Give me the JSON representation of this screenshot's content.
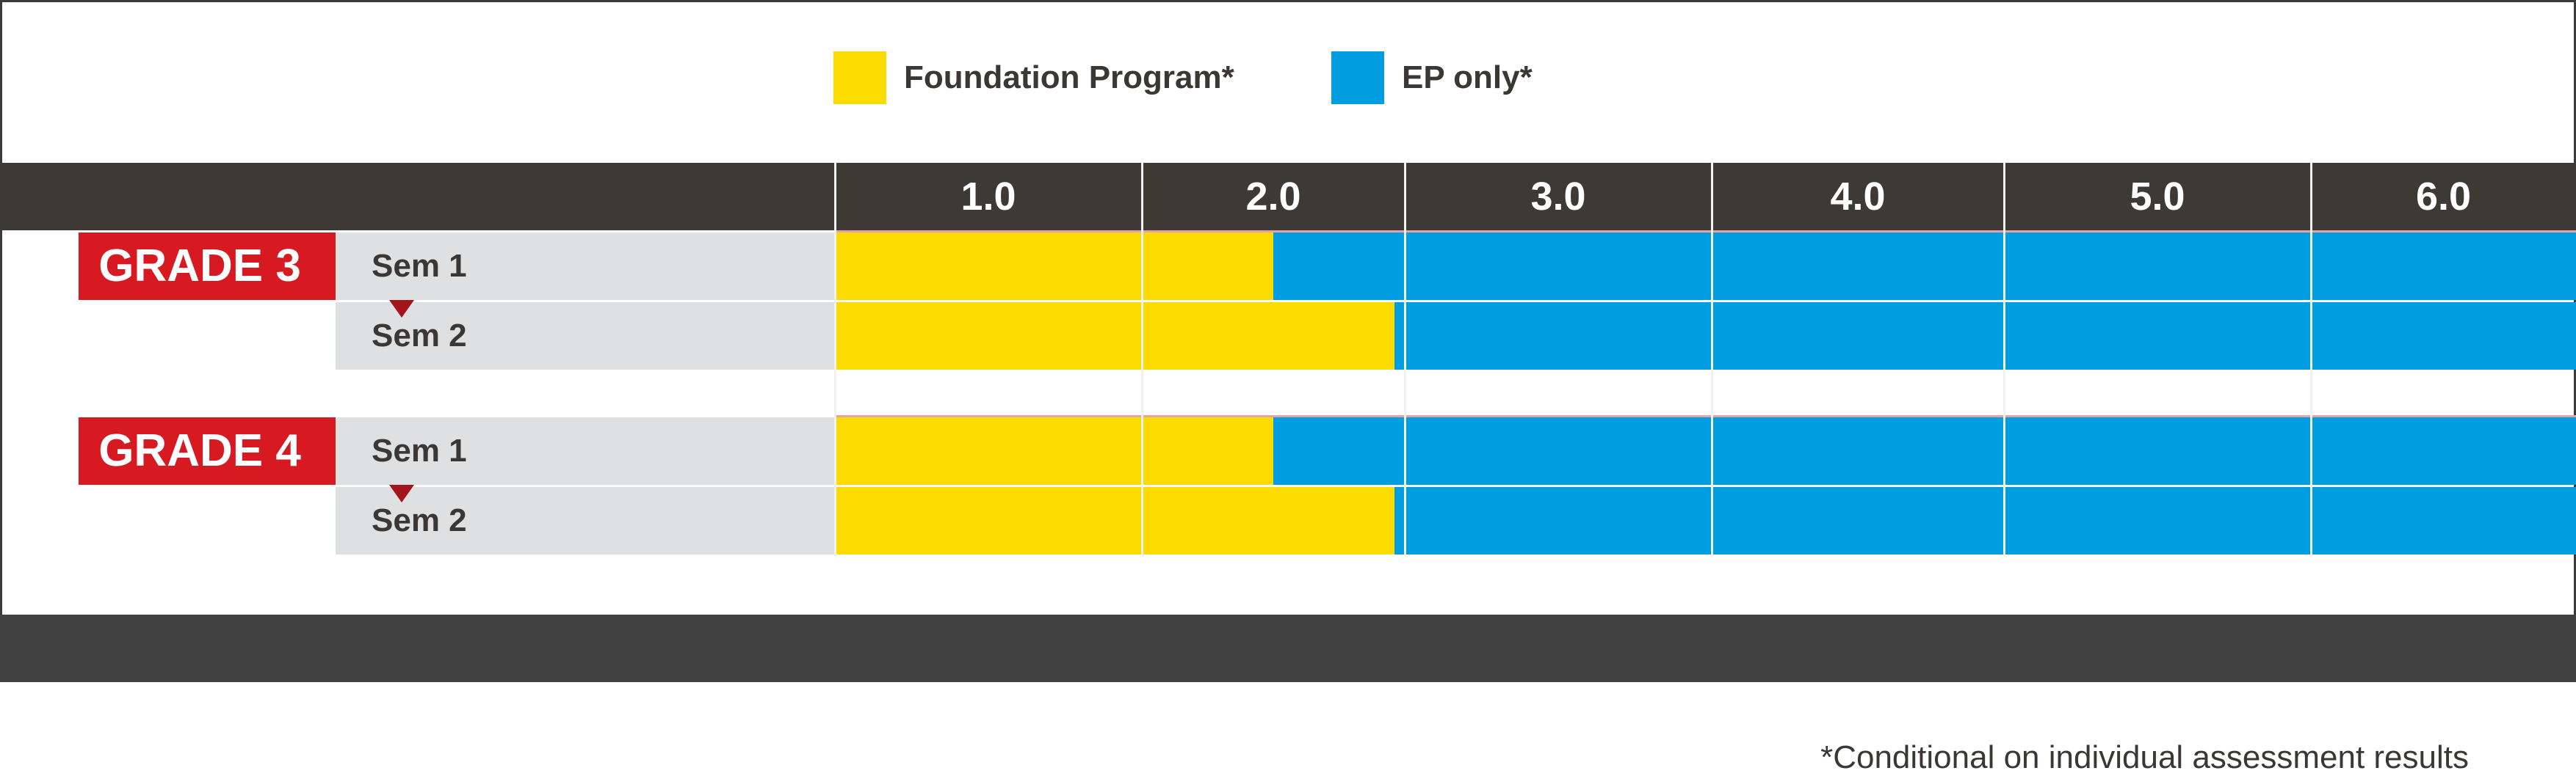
{
  "chart_data": {
    "type": "bar",
    "orientation": "horizontal",
    "stacked": true,
    "legend": [
      {
        "name": "Foundation Program*",
        "color": "#fcdc00"
      },
      {
        "name": "EP only*",
        "color": "#009ee0"
      }
    ],
    "x_ticks": [
      "1.0",
      "2.0",
      "3.0",
      "4.0",
      "5.0",
      "6.0"
    ],
    "groups": [
      {
        "label": "GRADE 3",
        "rows": [
          {
            "label": "Sem 1",
            "foundation_end": 2.0,
            "ep_end": 6.5
          },
          {
            "label": "Sem 2",
            "foundation_end": 2.46,
            "ep_end": 6.5
          }
        ]
      },
      {
        "label": "GRADE 4",
        "rows": [
          {
            "label": "Sem 1",
            "foundation_end": 2.0,
            "ep_end": 6.5
          },
          {
            "label": "Sem 2",
            "foundation_end": 2.46,
            "ep_end": 6.5
          }
        ]
      }
    ],
    "footnote": "*Conditional on individual assessment results"
  },
  "colors": {
    "foundation": "#fcdc00",
    "ep": "#009ee0",
    "header": "#3d3935",
    "grade": "#d71a21",
    "rowlabel_bg": "#dfe0e2"
  }
}
